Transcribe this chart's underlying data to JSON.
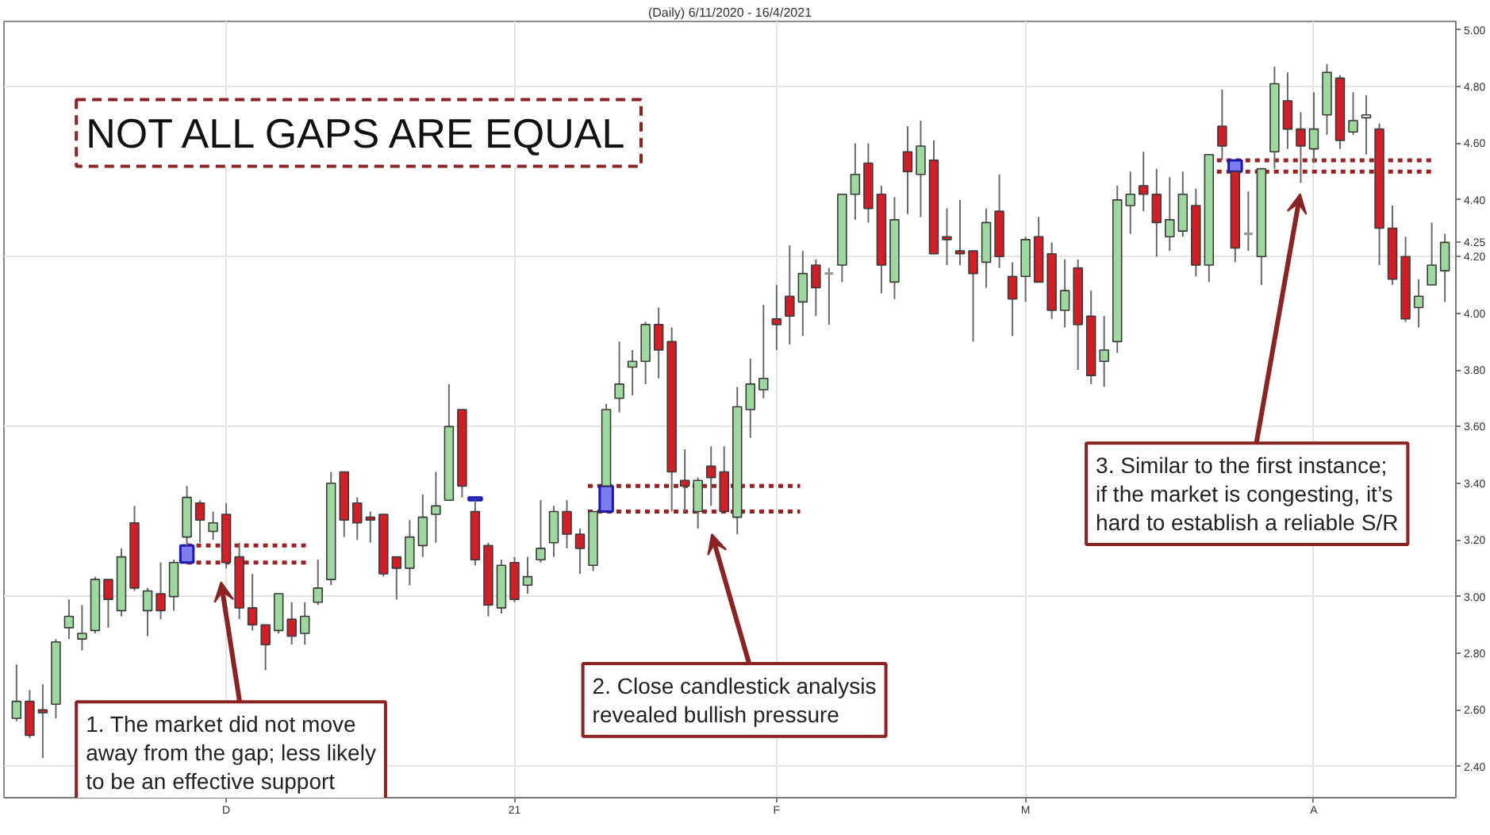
{
  "chart_data": {
    "type": "candlestick",
    "title": "NOT ALL GAPS ARE EQUAL",
    "subtitle": "(Daily) 6/11/2020 - 16/4/2021",
    "categories": [
      null,
      null,
      null,
      null,
      null,
      null,
      null,
      null,
      null,
      null,
      null,
      null,
      null,
      null,
      null,
      null,
      "D",
      null,
      null,
      null,
      null,
      null,
      null,
      null,
      null,
      null,
      null,
      null,
      null,
      null,
      null,
      null,
      null,
      null,
      null,
      null,
      null,
      null,
      "21",
      null,
      null,
      null,
      null,
      null,
      null,
      null,
      null,
      null,
      null,
      null,
      null,
      null,
      null,
      null,
      null,
      null,
      null,
      null,
      "F",
      null,
      null,
      null,
      null,
      null,
      null,
      null,
      null,
      null,
      null,
      null,
      null,
      null,
      null,
      null,
      null,
      null,
      null,
      "M",
      null,
      null,
      null,
      null,
      null,
      null,
      null,
      null,
      null,
      null,
      null,
      null,
      null,
      null,
      null,
      null,
      null,
      null,
      null,
      null,
      null,
      "A",
      null,
      null,
      null,
      null,
      null,
      null,
      null,
      null,
      null,
      null
    ],
    "ohlc": [
      [
        2.57,
        2.76,
        2.56,
        2.63
      ],
      [
        2.63,
        2.67,
        2.5,
        2.51
      ],
      [
        2.6,
        2.69,
        2.43,
        2.59
      ],
      [
        2.62,
        2.85,
        2.57,
        2.84
      ],
      [
        2.89,
        2.99,
        2.85,
        2.93
      ],
      [
        2.85,
        2.97,
        2.81,
        2.87
      ],
      [
        2.88,
        3.07,
        2.87,
        3.06
      ],
      [
        3.06,
        3.06,
        2.89,
        2.99
      ],
      [
        2.95,
        3.17,
        2.93,
        3.14
      ],
      [
        3.26,
        3.32,
        3.02,
        3.03
      ],
      [
        2.95,
        3.03,
        2.86,
        3.02
      ],
      [
        3.01,
        3.12,
        2.92,
        2.95
      ],
      [
        3.0,
        3.13,
        2.95,
        3.12
      ],
      [
        3.21,
        3.39,
        3.18,
        3.35
      ],
      [
        3.33,
        3.34,
        3.19,
        3.27
      ],
      [
        3.23,
        3.3,
        3.2,
        3.26
      ],
      [
        3.29,
        3.33,
        3.1,
        3.12
      ],
      [
        3.14,
        3.19,
        2.92,
        2.96
      ],
      [
        2.96,
        3.08,
        2.88,
        2.9
      ],
      [
        2.9,
        2.9,
        2.74,
        2.83
      ],
      [
        2.88,
        3.01,
        2.87,
        3.01
      ],
      [
        2.92,
        2.98,
        2.83,
        2.86
      ],
      [
        2.87,
        2.98,
        2.83,
        2.93
      ],
      [
        2.98,
        3.13,
        2.97,
        3.03
      ],
      [
        3.06,
        3.44,
        3.04,
        3.4
      ],
      [
        3.44,
        3.44,
        3.21,
        3.27
      ],
      [
        3.33,
        3.35,
        3.2,
        3.26
      ],
      [
        3.28,
        3.3,
        3.19,
        3.27
      ],
      [
        3.29,
        3.29,
        3.07,
        3.08
      ],
      [
        3.14,
        3.14,
        2.99,
        3.1
      ],
      [
        3.1,
        3.27,
        3.04,
        3.21
      ],
      [
        3.18,
        3.36,
        3.14,
        3.28
      ],
      [
        3.29,
        3.44,
        3.19,
        3.32
      ],
      [
        3.34,
        3.75,
        3.34,
        3.6
      ],
      [
        3.66,
        3.66,
        3.35,
        3.39
      ],
      [
        3.3,
        3.34,
        3.11,
        3.13
      ],
      [
        3.18,
        3.19,
        2.93,
        2.97
      ],
      [
        2.96,
        3.13,
        2.94,
        3.11
      ],
      [
        3.12,
        3.14,
        2.98,
        2.99
      ],
      [
        3.04,
        3.14,
        3.01,
        3.07
      ],
      [
        3.13,
        3.34,
        3.12,
        3.17
      ],
      [
        3.19,
        3.32,
        3.14,
        3.3
      ],
      [
        3.3,
        3.34,
        3.17,
        3.22
      ],
      [
        3.22,
        3.24,
        3.08,
        3.17
      ],
      [
        3.11,
        3.3,
        3.09,
        3.3
      ],
      [
        3.39,
        3.68,
        3.39,
        3.66
      ],
      [
        3.7,
        3.9,
        3.65,
        3.75
      ],
      [
        3.81,
        3.87,
        3.71,
        3.83
      ],
      [
        3.83,
        3.97,
        3.75,
        3.96
      ],
      [
        3.96,
        4.02,
        3.77,
        3.87
      ],
      [
        3.9,
        3.95,
        3.3,
        3.44
      ],
      [
        3.41,
        3.52,
        3.3,
        3.39
      ],
      [
        3.3,
        3.42,
        3.24,
        3.41
      ],
      [
        3.46,
        3.53,
        3.32,
        3.42
      ],
      [
        3.44,
        3.53,
        3.3,
        3.3
      ],
      [
        3.28,
        3.74,
        3.22,
        3.67
      ],
      [
        3.66,
        3.84,
        3.56,
        3.75
      ],
      [
        3.73,
        4.03,
        3.7,
        3.77
      ],
      [
        3.98,
        4.1,
        3.87,
        3.96
      ],
      [
        4.06,
        4.24,
        3.89,
        3.99
      ],
      [
        4.04,
        4.22,
        3.92,
        4.14
      ],
      [
        4.17,
        4.19,
        3.99,
        4.09
      ],
      [
        4.14,
        4.16,
        3.96,
        4.14
      ],
      [
        4.17,
        4.42,
        4.11,
        4.42
      ],
      [
        4.42,
        4.6,
        4.33,
        4.49
      ],
      [
        4.53,
        4.6,
        4.32,
        4.37
      ],
      [
        4.42,
        4.45,
        4.07,
        4.17
      ],
      [
        4.11,
        4.41,
        4.05,
        4.33
      ],
      [
        4.57,
        4.66,
        4.35,
        4.5
      ],
      [
        4.49,
        4.68,
        4.34,
        4.59
      ],
      [
        4.54,
        4.61,
        4.21,
        4.21
      ],
      [
        4.27,
        4.37,
        4.17,
        4.26
      ],
      [
        4.22,
        4.4,
        4.17,
        4.21
      ],
      [
        4.22,
        4.22,
        3.9,
        4.14
      ],
      [
        4.18,
        4.37,
        4.09,
        4.32
      ],
      [
        4.36,
        4.49,
        4.16,
        4.2
      ],
      [
        4.13,
        4.18,
        3.92,
        4.05
      ],
      [
        4.13,
        4.27,
        4.04,
        4.26
      ],
      [
        4.27,
        4.34,
        4.11,
        4.11
      ],
      [
        4.21,
        4.25,
        3.98,
        4.01
      ],
      [
        4.01,
        4.19,
        3.95,
        4.08
      ],
      [
        4.16,
        4.19,
        3.8,
        3.96
      ],
      [
        3.99,
        4.08,
        3.75,
        3.78
      ],
      [
        3.83,
        3.99,
        3.74,
        3.87
      ],
      [
        3.9,
        4.45,
        3.86,
        4.4
      ],
      [
        4.38,
        4.5,
        4.28,
        4.42
      ],
      [
        4.45,
        4.57,
        4.36,
        4.42
      ],
      [
        4.42,
        4.51,
        4.2,
        4.32
      ],
      [
        4.27,
        4.48,
        4.22,
        4.33
      ],
      [
        4.29,
        4.5,
        4.27,
        4.42
      ],
      [
        4.38,
        4.44,
        4.13,
        4.17
      ],
      [
        4.17,
        4.56,
        4.11,
        4.56
      ],
      [
        4.66,
        4.79,
        4.54,
        4.59
      ],
      [
        4.5,
        4.5,
        4.18,
        4.23
      ],
      [
        4.28,
        4.43,
        4.22,
        4.28
      ],
      [
        4.2,
        4.51,
        4.1,
        4.51
      ],
      [
        4.57,
        4.87,
        4.51,
        4.81
      ],
      [
        4.75,
        4.85,
        4.58,
        4.65
      ],
      [
        4.65,
        4.71,
        4.46,
        4.59
      ],
      [
        4.58,
        4.78,
        4.53,
        4.65
      ],
      [
        4.7,
        4.88,
        4.63,
        4.85
      ],
      [
        4.83,
        4.84,
        4.58,
        4.61
      ],
      [
        4.64,
        4.78,
        4.63,
        4.68
      ],
      [
        4.69,
        4.77,
        4.56,
        4.7
      ],
      [
        4.65,
        4.67,
        4.17,
        4.3
      ],
      [
        4.3,
        4.38,
        4.1,
        4.12
      ],
      [
        4.2,
        4.27,
        3.97,
        3.98
      ],
      [
        4.02,
        4.12,
        3.95,
        4.06
      ],
      [
        4.1,
        4.32,
        4.1,
        4.17
      ],
      [
        4.15,
        4.28,
        4.04,
        4.25
      ]
    ],
    "colors": [
      "#9ed89e",
      "#d01f26",
      "#d01f26",
      "#9ed89e",
      "#9ed89e",
      "#9ed89e",
      "#9ed89e",
      "#d01f26",
      "#9ed89e",
      "#d01f26",
      "#9ed89e",
      "#d01f26",
      "#9ed89e",
      "#9ed89e",
      "#d01f26",
      "#9ed89e",
      "#d01f26",
      "#d01f26",
      "#d01f26",
      "#d01f26",
      "#9ed89e",
      "#d01f26",
      "#9ed89e",
      "#9ed89e",
      "#9ed89e",
      "#d01f26",
      "#d01f26",
      "#d01f26",
      "#d01f26",
      "#d01f26",
      "#9ed89e",
      "#9ed89e",
      "#9ed89e",
      "#9ed89e",
      "#d01f26",
      "#d01f26",
      "#d01f26",
      "#9ed89e",
      "#d01f26",
      "#9ed89e",
      "#9ed89e",
      "#9ed89e",
      "#d01f26",
      "#d01f26",
      "#9ed89e",
      "#9ed89e",
      "#9ed89e",
      "#9ed89e",
      "#9ed89e",
      "#d01f26",
      "#d01f26",
      "#d01f26",
      "#9ed89e",
      "#d01f26",
      "#d01f26",
      "#9ed89e",
      "#9ed89e",
      "#9ed89e",
      "#d01f26",
      "#d01f26",
      "#9ed89e",
      "#d01f26",
      "#9a9a9a",
      "#9ed89e",
      "#9ed89e",
      "#d01f26",
      "#d01f26",
      "#9ed89e",
      "#d01f26",
      "#9ed89e",
      "#d01f26",
      "#d01f26",
      "#d01f26",
      "#d01f26",
      "#9ed89e",
      "#d01f26",
      "#d01f26",
      "#9ed89e",
      "#d01f26",
      "#d01f26",
      "#9ed89e",
      "#d01f26",
      "#d01f26",
      "#9ed89e",
      "#9ed89e",
      "#9ed89e",
      "#d01f26",
      "#d01f26",
      "#9ed89e",
      "#9ed89e",
      "#d01f26",
      "#9ed89e",
      "#d01f26",
      "#d01f26",
      "#9a9a9a",
      "#9ed89e",
      "#9ed89e",
      "#d01f26",
      "#d01f26",
      "#9ed89e",
      "#9ed89e",
      "#d01f26",
      "#9ed89e",
      "#ffffff",
      "#d01f26",
      "#d01f26",
      "#d01f26",
      "#9ed89e",
      "#9ed89e",
      "#9ed89e"
    ],
    "series": [
      {
        "type": "bar",
        "color": "#7d7df0",
        "values": [
          null,
          null,
          null,
          null,
          null,
          null,
          null,
          null,
          null,
          null,
          null,
          null,
          null,
          0.06,
          null,
          null,
          null,
          null,
          null,
          null,
          null,
          null,
          null,
          null,
          null,
          null,
          null,
          null,
          null,
          null,
          null,
          null,
          null,
          null,
          null,
          0.01,
          null,
          null,
          null,
          null,
          null,
          null,
          null,
          null,
          null,
          0.09,
          null,
          null,
          null,
          null,
          null,
          null,
          null,
          null,
          null,
          null,
          null,
          null,
          null,
          null,
          null,
          null,
          null,
          null,
          null,
          null,
          null,
          null,
          null,
          null,
          null,
          null,
          null,
          null,
          null,
          null,
          null,
          null,
          null,
          null,
          null,
          null,
          null,
          null,
          null,
          null,
          null,
          null,
          null,
          null,
          null,
          null,
          null,
          0.04,
          null,
          null,
          null,
          null,
          null,
          null,
          null,
          null,
          null,
          null,
          null,
          null,
          null,
          null,
          null,
          null
        ],
        "base": [
          null,
          null,
          null,
          null,
          null,
          null,
          null,
          null,
          null,
          null,
          null,
          null,
          null,
          3.12,
          null,
          null,
          null,
          null,
          null,
          null,
          null,
          null,
          null,
          null,
          null,
          null,
          null,
          null,
          null,
          null,
          null,
          null,
          null,
          null,
          null,
          3.34,
          null,
          null,
          null,
          null,
          null,
          null,
          null,
          null,
          null,
          3.3,
          null,
          null,
          null,
          null,
          null,
          null,
          null,
          null,
          null,
          null,
          null,
          null,
          null,
          null,
          null,
          null,
          null,
          null,
          null,
          null,
          null,
          null,
          null,
          null,
          null,
          null,
          null,
          null,
          null,
          null,
          null,
          null,
          null,
          null,
          null,
          null,
          null,
          null,
          null,
          null,
          null,
          null,
          null,
          null,
          null,
          null,
          null,
          4.5,
          null,
          null,
          null,
          null,
          null,
          null,
          null,
          null,
          null,
          null,
          null,
          null,
          null,
          null,
          null,
          null
        ]
      }
    ],
    "ylim": [
      2.29,
      5.03
    ],
    "yticks": [
      {
        "value": 2.4,
        "label": "2.40"
      },
      {
        "value": 2.6,
        "label": "2.60"
      },
      {
        "value": 2.8,
        "label": "2.80"
      },
      {
        "value": 3.0,
        "label": "3.00"
      },
      {
        "value": 3.2,
        "label": "3.20"
      },
      {
        "value": 3.4,
        "label": "3.40"
      },
      {
        "value": 3.6,
        "label": "3.60"
      },
      {
        "value": 3.8,
        "label": "3.80"
      },
      {
        "value": 4.0,
        "label": "4.00"
      },
      {
        "value": 4.2,
        "label": "4.20"
      },
      {
        "value": 4.25,
        "label": "4.25"
      },
      {
        "value": 4.4,
        "label": "4.40"
      },
      {
        "value": 4.6,
        "label": "4.60"
      },
      {
        "value": 4.8,
        "label": "4.80"
      },
      {
        "value": 5.0,
        "label": "5.00"
      }
    ],
    "grid": true,
    "ref_lines": [
      {
        "axis": "y",
        "value": 3.18,
        "color": "#9b2226",
        "line_style": "dotted"
      },
      {
        "axis": "y",
        "value": 3.12,
        "color": "#9b2226",
        "line_style": "dotted"
      },
      {
        "axis": "y",
        "value": 3.39,
        "color": "#9b2226",
        "line_style": "dotted"
      },
      {
        "axis": "y",
        "value": 3.3,
        "color": "#9b2226",
        "line_style": "dotted"
      },
      {
        "axis": "y",
        "value": 4.54,
        "color": "#9b2226",
        "line_style": "dotted"
      },
      {
        "axis": "y",
        "value": 4.5,
        "color": "#9b2226",
        "line_style": "dotted"
      }
    ],
    "annotations": [
      "1. The market did not move away from the gap; less likely to be an effective support",
      "2. Close candlestick analysis revealed bullish pressure",
      "3. Similar to the first instance; if the market is congesting, it’s hard to establish a reliable S/R"
    ]
  }
}
